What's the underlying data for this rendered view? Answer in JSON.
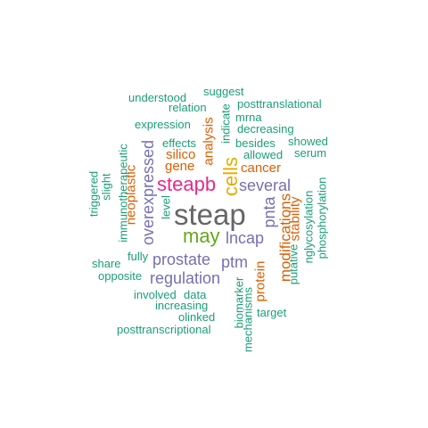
{
  "colors": {
    "green": "#1b9e77",
    "orange": "#d95f02",
    "purple": "#7570b3",
    "magenta": "#e7298a",
    "lime": "#66a61e",
    "gold": "#e6ab02",
    "gray": "#666666"
  },
  "words": {
    "steap": "steap",
    "cells": "cells",
    "steapb": "steapb",
    "may": "may",
    "lncap": "lncap",
    "several": "several",
    "prostate": "prostate",
    "regulation": "regulation",
    "ptm": "ptm",
    "pnta": "pnta",
    "overexpressed": "overexpressed",
    "modifications": "modifications",
    "stability": "stability",
    "protein": "protein",
    "analysis": "analysis",
    "silico": "silico",
    "gene": "gene",
    "cancer": "cancer",
    "neoplastic": "neoplastic",
    "understood": "understood",
    "suggest": "suggest",
    "relation": "relation",
    "posttranslational": "posttranslational",
    "expression": "expression",
    "mrna": "mrna",
    "indicate": "indicate",
    "decreasing": "decreasing",
    "effects": "effects",
    "besides": "besides",
    "showed": "showed",
    "allowed": "allowed",
    "serum": "serum",
    "immunotherapeutic": "immunotherapeutic",
    "slight": "slight",
    "triggered": "triggered",
    "level": "level",
    "nglycosylation": "nglycosylation",
    "phosphorylation": "phosphorylation",
    "putative": "putative",
    "share": "share",
    "fully": "fully",
    "opposite": "opposite",
    "involved": "involved",
    "data": "data",
    "increasing": "increasing",
    "olinked": "olinked",
    "posttranscriptional": "posttranscriptional",
    "biomarker": "biomarker",
    "mechanisms": "mechanisms",
    "target": "target"
  }
}
